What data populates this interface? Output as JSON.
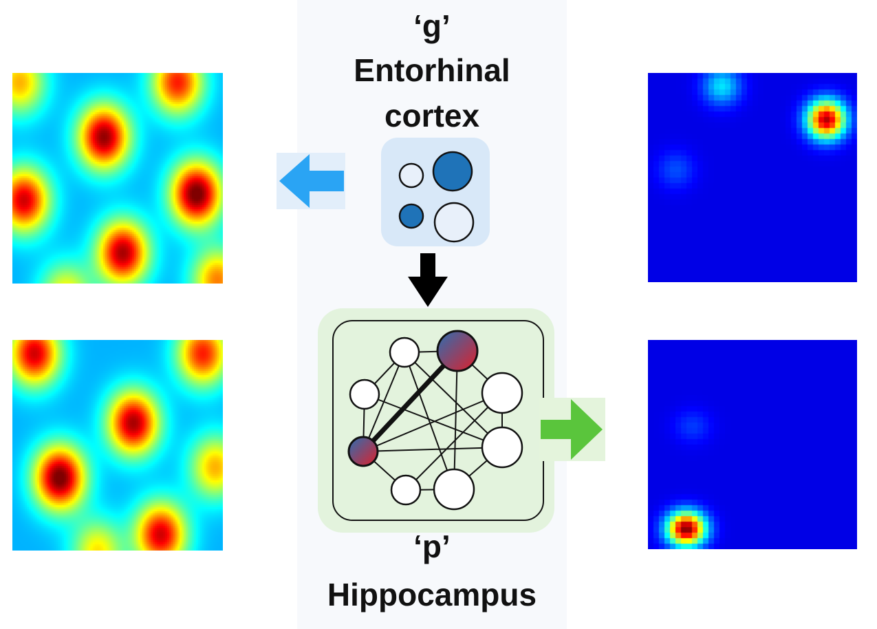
{
  "entorhinal": {
    "letter": "‘g’",
    "name_line1": "Entorhinal",
    "name_line2": "cortex"
  },
  "hippocampus": {
    "letter": "‘p’",
    "name": "Hippocampus"
  },
  "colors": {
    "blue_arrow": "#2aa4f4",
    "green_arrow": "#5ac53c",
    "black_arrow": "#000000",
    "entorhinal_box": "#d8e8f8",
    "hippocampus_box": "#e3f3dd",
    "neuron_dark": "#1f73b8",
    "neuron_light": "#e8f0fa",
    "active_node_top": "#2a6fb3",
    "active_node_bottom": "#e0202a"
  }
}
